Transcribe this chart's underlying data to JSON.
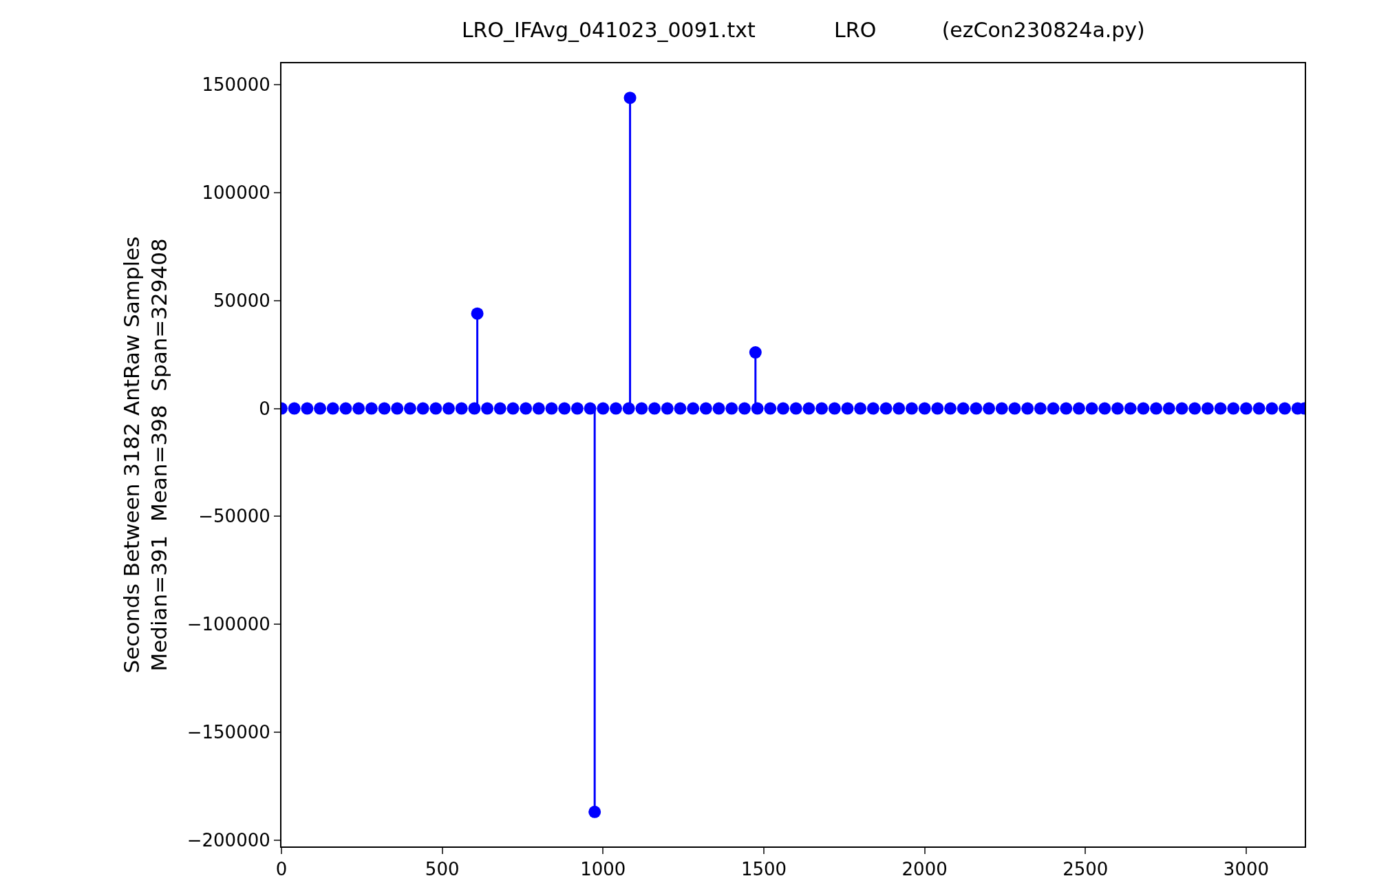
{
  "chart_data": {
    "type": "lollipop",
    "title": "LRO_IFAvg_041023_0091.txt            LRO          (ezCon230824a.py)",
    "ylabel": "Seconds Between 3182 AntRaw Samples\nMedian=391  Mean=398  Span=329408",
    "xlim": [
      0,
      3182
    ],
    "xticks": [
      0,
      500,
      1000,
      1500,
      2000,
      2500,
      3000
    ],
    "ylim": [
      -203000,
      160000
    ],
    "yticks": [
      -200000,
      -150000,
      -100000,
      -50000,
      0,
      50000,
      100000,
      150000
    ],
    "grid": false,
    "marker": "circle",
    "series": [
      {
        "color": "#0000ff",
        "x": [
          0,
          40,
          80,
          120,
          160,
          200,
          240,
          280,
          320,
          360,
          400,
          440,
          480,
          520,
          560,
          600,
          640,
          680,
          720,
          760,
          800,
          840,
          880,
          920,
          960,
          1000,
          1040,
          1080,
          1120,
          1160,
          1200,
          1240,
          1280,
          1320,
          1360,
          1400,
          1440,
          1480,
          1520,
          1560,
          1600,
          1640,
          1680,
          1720,
          1760,
          1800,
          1840,
          1880,
          1920,
          1960,
          2000,
          2040,
          2080,
          2120,
          2160,
          2200,
          2240,
          2280,
          2320,
          2360,
          2400,
          2440,
          2480,
          2520,
          2560,
          2600,
          2640,
          2680,
          2720,
          2760,
          2800,
          2840,
          2880,
          2920,
          2960,
          3000,
          3040,
          3080,
          3120,
          3160,
          3181
        ],
        "values": [
          0,
          0,
          0,
          0,
          0,
          0,
          0,
          0,
          0,
          0,
          0,
          0,
          0,
          0,
          0,
          0,
          0,
          0,
          0,
          0,
          0,
          0,
          0,
          0,
          0,
          0,
          0,
          0,
          0,
          0,
          0,
          0,
          0,
          0,
          0,
          0,
          0,
          0,
          0,
          0,
          0,
          0,
          0,
          0,
          0,
          0,
          0,
          0,
          0,
          0,
          0,
          0,
          0,
          0,
          0,
          0,
          0,
          0,
          0,
          0,
          0,
          0,
          0,
          0,
          0,
          0,
          0,
          0,
          0,
          0,
          0,
          0,
          0,
          0,
          0,
          0,
          0,
          0,
          0,
          0,
          0
        ]
      },
      {
        "color": "#0000ff",
        "x": [
          609,
          974,
          1084,
          1474
        ],
        "values": [
          44000,
          -187000,
          144000,
          26000
        ]
      }
    ]
  }
}
